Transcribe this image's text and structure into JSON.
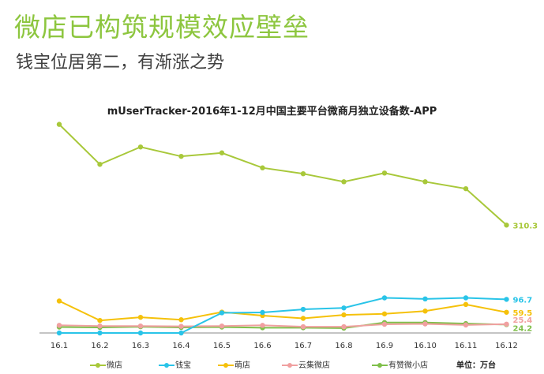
{
  "headline": "微店已构筑规模效应壁垒",
  "subheadline": "钱宝位居第二，有渐涨之势",
  "unit_label": "单位：万台",
  "chart_data": {
    "type": "line",
    "title": "mUserTracker-2016年1-12月中国主要平台微商月独立设备数-APP",
    "categories": [
      "16.1",
      "16.2",
      "16.3",
      "16.4",
      "16.5",
      "16.6",
      "16.7",
      "16.8",
      "16.9",
      "16.10",
      "16.11",
      "16.12"
    ],
    "ylim": [
      0,
      640
    ],
    "grid": false,
    "legend_position": "bottom",
    "series": [
      {
        "name": "微店",
        "color": "#a8c83a",
        "values": [
          600,
          485,
          535,
          508,
          518,
          475,
          458,
          435,
          460,
          435,
          415,
          310.3
        ],
        "end_label": "310.3"
      },
      {
        "name": "钱宝",
        "color": "#29c4e8",
        "values": [
          0,
          0,
          0,
          0,
          58,
          59,
          68,
          72,
          101,
          98,
          101,
          96.7
        ],
        "end_label": "96.7"
      },
      {
        "name": "萌店",
        "color": "#f5c10a",
        "values": [
          92,
          36,
          45,
          38,
          60,
          50,
          42,
          52,
          55,
          63,
          82,
          59.5
        ],
        "end_label": "59.5"
      },
      {
        "name": "云集微店",
        "color": "#f0a0a0",
        "values": [
          22,
          20,
          20,
          19,
          20,
          22,
          18,
          18,
          25,
          26,
          23,
          25.4
        ],
        "end_label": "25.4"
      },
      {
        "name": "有赞微小店",
        "color": "#7fbf4a",
        "values": [
          17,
          16,
          18,
          16,
          17,
          15,
          15,
          14,
          30,
          30,
          27,
          24.2
        ],
        "end_label": "24.2"
      }
    ]
  }
}
